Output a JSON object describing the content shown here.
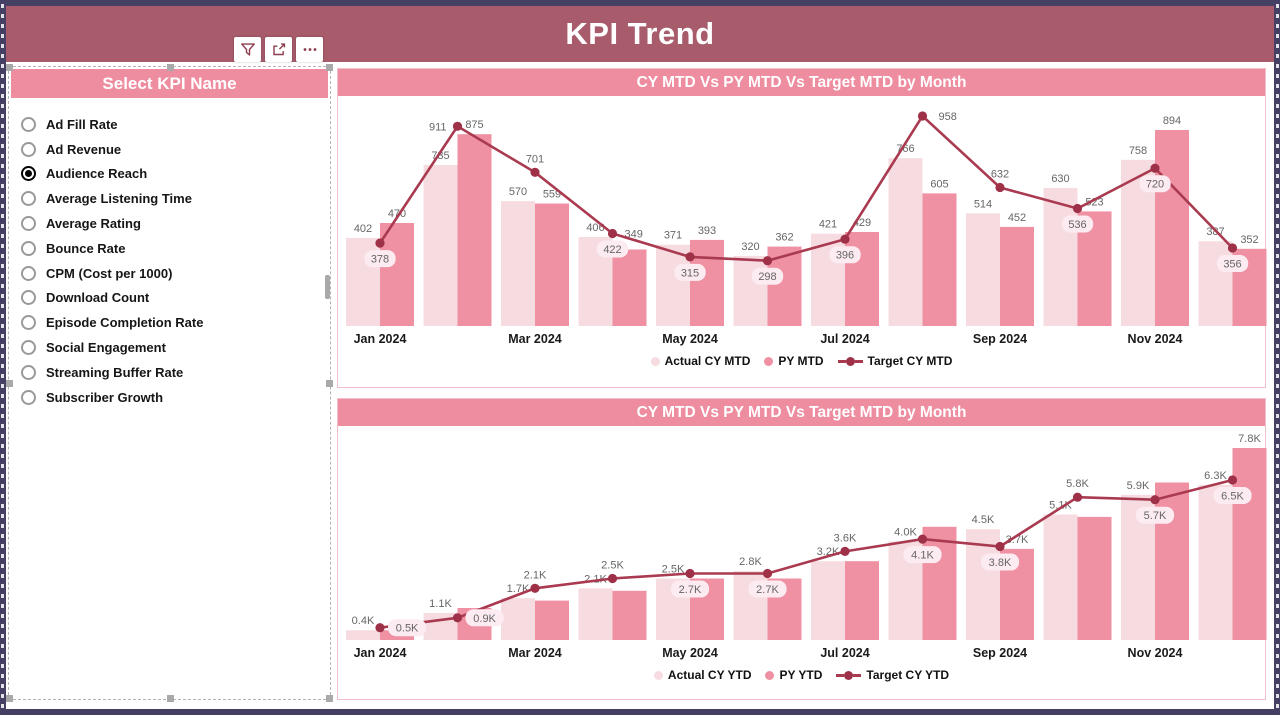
{
  "header": {
    "title": "KPI Trend",
    "toolbar_icons": [
      "filter-icon",
      "focus-mode-icon",
      "more-options-icon"
    ]
  },
  "sidebar": {
    "title": "Select KPI Name",
    "selected": "Audience Reach",
    "items": [
      "Ad Fill Rate",
      "Ad Revenue",
      "Audience Reach",
      "Average Listening Time",
      "Average Rating",
      "Bounce Rate",
      "CPM (Cost per 1000)",
      "Download Count",
      "Episode Completion Rate",
      "Social Engagement",
      "Streaming Buffer Rate",
      "Subscriber Growth"
    ]
  },
  "colors": {
    "page_border": "#454063",
    "header_bg": "#a75b6b",
    "panel_title_bg": "#ee8ca0",
    "chart_border": "#f0bfca",
    "actual_bar": "#f6dce1",
    "py_bar": "#ef91a3",
    "target_line": "#a93a50",
    "marker": "#9e3148",
    "label_text": "#666666",
    "label_box_bg": "#fcebf0",
    "axis_text": "#1a1a1a",
    "icon_color": "#8e3e4f"
  },
  "chart_data": [
    {
      "type": "bar+line",
      "title": "CY MTD Vs PY MTD Vs Target MTD by Month",
      "x_axis_labels": [
        "Jan 2024",
        "Mar 2024",
        "May 2024",
        "Jul 2024",
        "Sep 2024",
        "Nov 2024"
      ],
      "value_format": "raw",
      "ylim": [
        0,
        1000
      ],
      "legend_position": "bottom-center",
      "series": [
        {
          "name": "Actual CY MTD",
          "type": "bar",
          "role": "actual",
          "values": [
            402,
            735,
            570,
            406,
            371,
            320,
            421,
            766,
            514,
            630,
            758,
            387
          ]
        },
        {
          "name": "PY MTD",
          "type": "bar",
          "role": "py",
          "values": [
            470,
            875,
            559,
            349,
            393,
            362,
            429,
            605,
            452,
            523,
            894,
            352
          ]
        },
        {
          "name": "Target CY MTD",
          "type": "line",
          "role": "target",
          "values": [
            378,
            911,
            701,
            422,
            315,
            298,
            396,
            958,
            632,
            536,
            720,
            356
          ]
        }
      ],
      "target_label_boxed_below": [
        true,
        false,
        false,
        true,
        true,
        true,
        true,
        false,
        false,
        true,
        true,
        true
      ],
      "py_labels_visible": [
        true,
        true,
        true,
        true,
        true,
        true,
        true,
        true,
        true,
        true,
        true,
        true
      ]
    },
    {
      "type": "bar+line",
      "title": "CY MTD Vs PY MTD Vs Target MTD by Month",
      "x_axis_labels": [
        "Jan 2024",
        "Mar 2024",
        "May 2024",
        "Jul 2024",
        "Sep 2024",
        "Nov 2024"
      ],
      "value_format": "k",
      "ylim": [
        0,
        8000
      ],
      "legend_position": "bottom-center",
      "series": [
        {
          "name": "Actual CY YTD",
          "type": "bar",
          "role": "actual",
          "values": [
            400,
            1100,
            1700,
            2100,
            2500,
            2800,
            3200,
            4000,
            4500,
            5100,
            5900,
            6300
          ]
        },
        {
          "name": "PY YTD",
          "type": "bar",
          "role": "py",
          "values": [
            400,
            1300,
            1600,
            2000,
            2500,
            2500,
            3200,
            4600,
            3700,
            5000,
            6400,
            7800
          ]
        },
        {
          "name": "Target CY YTD",
          "type": "line",
          "role": "target",
          "values": [
            500,
            900,
            2100,
            2500,
            2700,
            2700,
            3600,
            4100,
            3800,
            5800,
            5700,
            6500
          ]
        }
      ],
      "target_label_boxed_below": [
        true,
        true,
        false,
        false,
        true,
        true,
        false,
        true,
        true,
        false,
        true,
        true
      ],
      "py_labels_visible": [
        false,
        false,
        false,
        false,
        false,
        false,
        false,
        false,
        true,
        false,
        false,
        true
      ]
    }
  ]
}
